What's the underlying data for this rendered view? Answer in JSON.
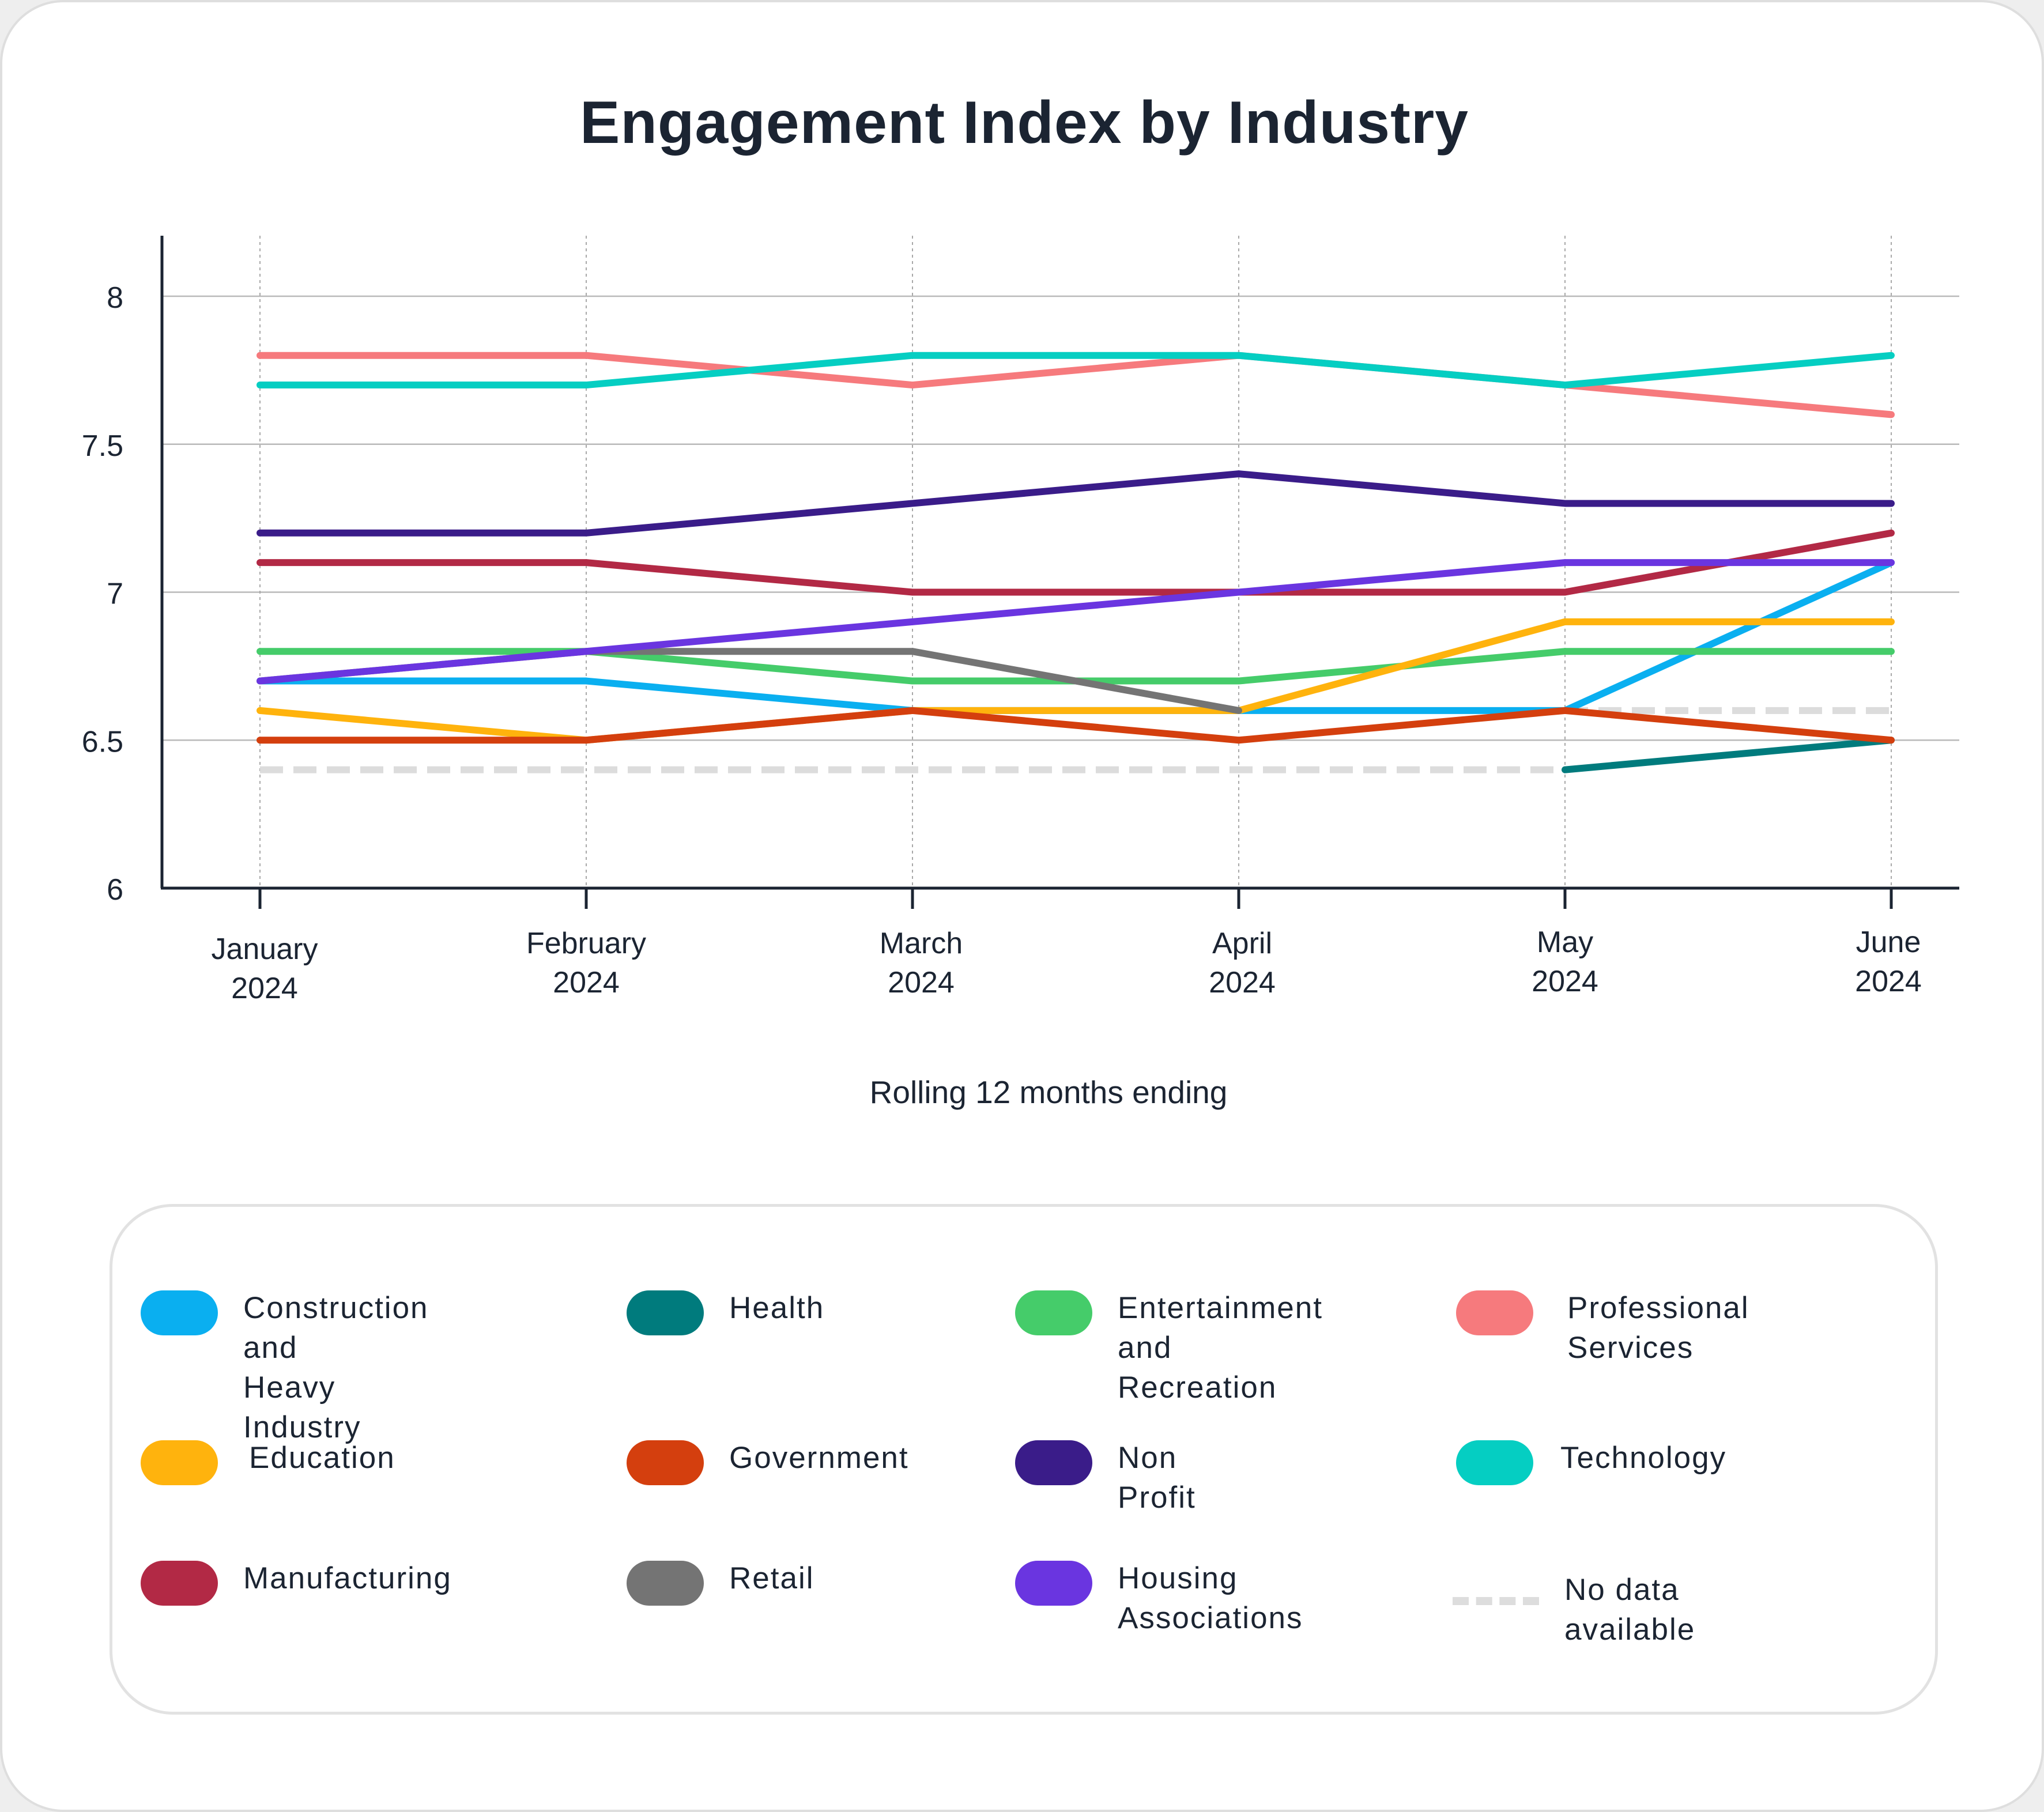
{
  "chart_data": {
    "type": "line",
    "title": "Engagement Index by Industry",
    "xlabel": "Rolling 12 months ending",
    "ylabel": "",
    "ylim": [
      6,
      8
    ],
    "yticks": [
      "6",
      "6.5",
      "7",
      "7.5",
      "8"
    ],
    "grid": true,
    "legend_position": "bottom",
    "categories": [
      [
        "January",
        "2024"
      ],
      [
        "February",
        "2024"
      ],
      [
        "March",
        "2024"
      ],
      [
        "April",
        "2024"
      ],
      [
        "May",
        "2024"
      ],
      [
        "June",
        "2024"
      ]
    ],
    "series": [
      {
        "name": "Construction and Heavy Industry",
        "color": "#0aaff0",
        "values": [
          6.7,
          6.7,
          6.6,
          6.6,
          6.6,
          7.1
        ]
      },
      {
        "name": "Health",
        "color": "#007b7d",
        "values": [
          null,
          null,
          null,
          null,
          6.4,
          6.5
        ]
      },
      {
        "name": "Entertainment and Recreation",
        "color": "#45cc6a",
        "values": [
          6.8,
          6.8,
          6.7,
          6.7,
          6.8,
          6.8
        ]
      },
      {
        "name": "Professional Services",
        "color": "#f67a7d",
        "values": [
          7.8,
          7.8,
          7.7,
          7.8,
          7.7,
          7.6
        ]
      },
      {
        "name": "Education",
        "color": "#ffb30d",
        "values": [
          6.6,
          6.5,
          6.6,
          6.6,
          6.9,
          6.9
        ]
      },
      {
        "name": "Government",
        "color": "#d43f0e",
        "values": [
          6.5,
          6.5,
          6.6,
          6.5,
          6.6,
          6.5
        ]
      },
      {
        "name": "Non Profit",
        "color": "#3a1c89",
        "values": [
          7.2,
          7.2,
          7.3,
          7.4,
          7.3,
          7.3
        ]
      },
      {
        "name": "Technology",
        "color": "#05cec2",
        "values": [
          7.7,
          7.7,
          7.8,
          7.8,
          7.7,
          7.8
        ]
      },
      {
        "name": "Manufacturing",
        "color": "#b22945",
        "values": [
          7.1,
          7.1,
          7.0,
          7.0,
          7.0,
          7.2
        ]
      },
      {
        "name": "Retail",
        "color": "#747474",
        "values": [
          6.7,
          6.8,
          6.8,
          6.6,
          null,
          null
        ]
      },
      {
        "name": "Housing Associations",
        "color": "#6a35e0",
        "values": [
          6.7,
          6.8,
          6.9,
          7.0,
          7.1,
          7.1
        ]
      }
    ],
    "no_data_segments": [
      {
        "name": "Health",
        "values": [
          6.4,
          6.4,
          6.4,
          6.4,
          6.4,
          null
        ]
      },
      {
        "name": "Retail",
        "values": [
          null,
          null,
          null,
          null,
          6.6,
          6.6
        ]
      }
    ]
  },
  "legend": {
    "items": [
      {
        "label": "Construction and\nHeavy Industry",
        "color": "#0aaff0"
      },
      {
        "label": "Health",
        "color": "#007b7d"
      },
      {
        "label": "Entertainment\nand Recreation",
        "color": "#45cc6a"
      },
      {
        "label": "Professional\nServices",
        "color": "#f67a7d"
      },
      {
        "label": "Education",
        "color": "#ffb30d"
      },
      {
        "label": "Government",
        "color": "#d43f0e"
      },
      {
        "label": "Non Profit",
        "color": "#3a1c89"
      },
      {
        "label": "Technology",
        "color": "#05cec2"
      },
      {
        "label": "Manufacturing",
        "color": "#b22945"
      },
      {
        "label": "Retail",
        "color": "#747474"
      },
      {
        "label": "Housing\nAssociations",
        "color": "#6a35e0"
      },
      {
        "label": "No data\navailable",
        "color": "#dddddd",
        "dashed": true
      }
    ]
  }
}
